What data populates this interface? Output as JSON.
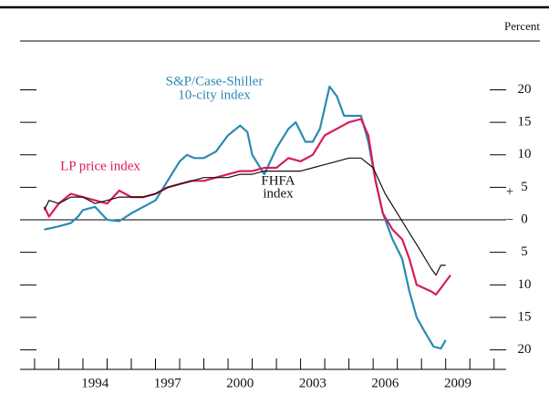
{
  "chart_data": {
    "type": "line",
    "unit_label": "Percent",
    "annotations": [
      "S&P/Case-Shiller",
      "10-city index",
      "LP price index",
      "FHFA",
      "index",
      "+",
      "−"
    ],
    "xlim": [
      1991.4,
      2011.5
    ],
    "xticks": [
      {
        "value": 1994.5,
        "label": "1994"
      },
      {
        "value": 1997.5,
        "label": "1997"
      },
      {
        "value": 2000.5,
        "label": "2000"
      },
      {
        "value": 2003.5,
        "label": "2003"
      },
      {
        "value": 2006.5,
        "label": "2006"
      },
      {
        "value": 2009.5,
        "label": "2009"
      }
    ],
    "xminor": [
      1992,
      1993,
      1994,
      1995,
      1996,
      1997,
      1998,
      1999,
      2000,
      2001,
      2002,
      2003,
      2004,
      2005,
      2006,
      2007,
      2008,
      2009,
      2010,
      2011
    ],
    "ylim": [
      -23,
      27.5
    ],
    "yticks": [
      {
        "value": -20,
        "label": "20"
      },
      {
        "value": -15,
        "label": "15"
      },
      {
        "value": -10,
        "label": "10"
      },
      {
        "value": -5,
        "label": "5"
      },
      0,
      5,
      10,
      15,
      20
    ],
    "series": [
      {
        "name": "S&P/Case-Shiller 10-city index",
        "color": "#2a8ab4",
        "x": [
          1992.4,
          1993.0,
          1993.5,
          1993.8,
          1994.0,
          1994.5,
          1995.0,
          1995.5,
          1996.0,
          1996.5,
          1997.0,
          1997.5,
          1998.0,
          1998.3,
          1998.6,
          1999.0,
          1999.5,
          2000.0,
          2000.5,
          2000.8,
          2001.0,
          2001.5,
          2002.0,
          2002.5,
          2002.8,
          2003.2,
          2003.5,
          2003.8,
          2004.2,
          2004.5,
          2004.8,
          2005.3,
          2005.5,
          2005.8,
          2006.1,
          2006.4,
          2006.8,
          2007.2,
          2007.5,
          2007.8,
          2008.1,
          2008.5,
          2008.8,
          2009.0
        ],
        "values": [
          -1.5,
          -1,
          -0.5,
          0.5,
          1.5,
          2,
          0,
          -0.2,
          1,
          2,
          3,
          6,
          9,
          10,
          9.5,
          9.5,
          10.5,
          13,
          14.5,
          13.5,
          10,
          7,
          11,
          14,
          15,
          12,
          12,
          14,
          20.5,
          19,
          16,
          16,
          16,
          12,
          6,
          1,
          -3,
          -6,
          -11,
          -15,
          -17,
          -19.5,
          -19.8,
          -18.5
        ]
      },
      {
        "name": "LP price index",
        "color": "#d81b5a",
        "x": [
          1992.4,
          1992.6,
          1993.0,
          1993.5,
          1994.0,
          1994.5,
          1995.0,
          1995.5,
          1996.0,
          1996.5,
          1997.0,
          1997.5,
          1998.0,
          1998.5,
          1999.0,
          1999.5,
          2000.0,
          2000.5,
          2001.0,
          2001.5,
          2002.0,
          2002.5,
          2003.0,
          2003.5,
          2004.0,
          2004.5,
          2005.0,
          2005.5,
          2005.8,
          2006.1,
          2006.4,
          2006.8,
          2007.2,
          2007.5,
          2007.8,
          2008.1,
          2008.4,
          2008.6,
          2008.8,
          2009.2
        ],
        "values": [
          2,
          0.5,
          2.5,
          4,
          3.5,
          3,
          2.5,
          4.5,
          3.5,
          3.5,
          4,
          5,
          5.5,
          6,
          6,
          6.5,
          7,
          7.5,
          7.5,
          8,
          8,
          9.5,
          9,
          10,
          13,
          14,
          15,
          15.5,
          13,
          6,
          1,
          -1.5,
          -3,
          -6,
          -10,
          -10.5,
          -11,
          -11.5,
          -10.5,
          -8.5
        ]
      },
      {
        "name": "FHFA index",
        "color": "#111111",
        "x": [
          1992.4,
          1992.6,
          1993.0,
          1993.5,
          1994.0,
          1994.5,
          1995.0,
          1995.5,
          1996.0,
          1996.5,
          1997.0,
          1997.5,
          1998.0,
          1998.5,
          1999.0,
          1999.5,
          2000.0,
          2000.5,
          2001.0,
          2001.5,
          2002.0,
          2002.5,
          2003.0,
          2003.5,
          2004.0,
          2004.5,
          2005.0,
          2005.5,
          2006.0,
          2006.5,
          2007.0,
          2007.5,
          2008.0,
          2008.4,
          2008.6,
          2008.8,
          2009.0
        ],
        "values": [
          1.5,
          3,
          2.5,
          3.5,
          3.5,
          2.5,
          3,
          3.5,
          3.5,
          3.5,
          4,
          5,
          5.5,
          6,
          6.5,
          6.5,
          6.5,
          7,
          7,
          7.5,
          7.5,
          7.5,
          7.5,
          8,
          8.5,
          9,
          9.5,
          9.5,
          8,
          4,
          1,
          -2,
          -5,
          -7.5,
          -8.5,
          -7,
          -7
        ]
      }
    ]
  }
}
